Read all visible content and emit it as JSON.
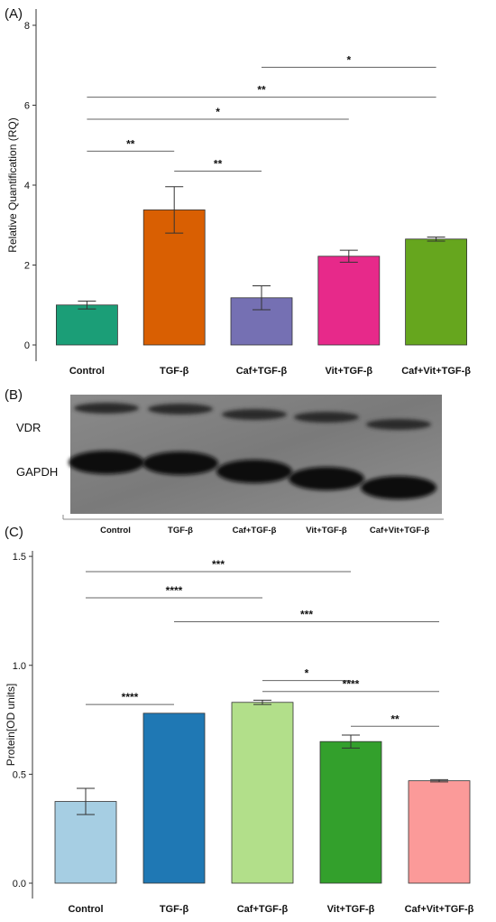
{
  "panel_labels": {
    "a": "(A)",
    "b": "(B)",
    "c": "(C)"
  },
  "blot": {
    "band_labels": [
      "VDR",
      "GAPDH"
    ],
    "lanes": [
      "Control",
      "TGF-β",
      "Caf+TGF-β",
      "Vit+TGF-β",
      "Caf+Vit+TGF-β"
    ]
  },
  "chart_data": [
    {
      "type": "bar",
      "categories": [
        "Control",
        "TGF-β",
        "Caf+TGF-β",
        "Vit+TGF-β",
        "Caf+Vit+TGF-β"
      ],
      "values": [
        1.0,
        3.38,
        1.18,
        2.22,
        2.65
      ],
      "errors": [
        0.1,
        0.58,
        0.3,
        0.15,
        0.05
      ],
      "colors": [
        "#1b9e77",
        "#d95f02",
        "#7570b3",
        "#e7298a",
        "#66a61e"
      ],
      "ylabel": "Relative Quantification (RQ)",
      "ylim": [
        0,
        8
      ],
      "yticks": [
        0,
        2,
        4,
        6,
        8
      ],
      "grid": false,
      "significance": [
        {
          "from": 0,
          "to": 1,
          "y": 4.85,
          "label": "**"
        },
        {
          "from": 1,
          "to": 2,
          "y": 4.35,
          "label": "**"
        },
        {
          "from": 0,
          "to": 3,
          "y": 5.65,
          "label": "*"
        },
        {
          "from": 0,
          "to": 4,
          "y": 6.2,
          "label": "**"
        },
        {
          "from": 2,
          "to": 4,
          "y": 6.95,
          "label": "*"
        }
      ]
    },
    {
      "type": "bar",
      "categories": [
        "Control",
        "TGF-β",
        "Caf+TGF-β",
        "Vit+TGF-β",
        "Caf+Vit+TGF-β"
      ],
      "values": [
        0.375,
        0.78,
        0.83,
        0.65,
        0.47
      ],
      "errors": [
        0.06,
        0.0,
        0.01,
        0.03,
        0.005
      ],
      "colors": [
        "#a6cee3",
        "#1f78b4",
        "#b2df8a",
        "#33a02c",
        "#fb9a99"
      ],
      "ylabel": "Protein[OD units]",
      "ylim": [
        0,
        1.6
      ],
      "yticks": [
        0.0,
        0.5,
        1.0,
        1.5
      ],
      "ytick_labels": [
        "0.0",
        "0.5",
        "1.0",
        "1.5"
      ],
      "grid": false,
      "significance": [
        {
          "from": 0,
          "to": 3,
          "y": 1.43,
          "label": "***"
        },
        {
          "from": 0,
          "to": 2,
          "y": 1.31,
          "label": "****"
        },
        {
          "from": 1,
          "to": 4,
          "y": 1.2,
          "label": "***"
        },
        {
          "from": 2,
          "to": 3,
          "y": 0.93,
          "label": "*"
        },
        {
          "from": 2,
          "to": 4,
          "y": 0.88,
          "label": "****"
        },
        {
          "from": 0,
          "to": 1,
          "y": 0.82,
          "label": "****"
        },
        {
          "from": 3,
          "to": 4,
          "y": 0.72,
          "label": "**"
        }
      ]
    }
  ]
}
